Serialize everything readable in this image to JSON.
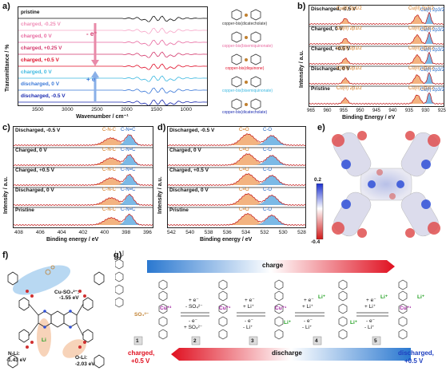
{
  "panel_a": {
    "label": "a)",
    "ylabel": "Transmittance / %",
    "xlabel": "Wavenumber / cm⁻¹",
    "xticks": [
      "3500",
      "3000",
      "2500",
      "2000",
      "1500",
      "1000"
    ],
    "rows": [
      {
        "label": "pristine",
        "color": "#111111"
      },
      {
        "label": "charged, -0.25 V",
        "color": "#f7a6c8"
      },
      {
        "label": "charged, 0 V",
        "color": "#e86aa0"
      },
      {
        "label": "charged, +0.25 V",
        "color": "#d43a6e"
      },
      {
        "label": "charged, +0.5 V",
        "color": "#e0102a"
      },
      {
        "label": "charged, 0 V",
        "color": "#3cb8e0"
      },
      {
        "label": "discharged, 0 V",
        "color": "#3a78d8"
      },
      {
        "label": "discharged, -0.5 V",
        "color": "#1a2ab0"
      }
    ],
    "arrow_down": "- e⁻",
    "arrow_up": "+ e⁻",
    "mol_labels": [
      "copper-bis(dicatecholate)",
      "copper-bis(bisemiquinonate)",
      "copper-bis(diquinone)",
      "copper-bis(bisemiquinonate)",
      "copper-bis(dicatecholate)"
    ]
  },
  "panel_b": {
    "label": "b)",
    "ylabel": "Intensity / a.u.",
    "xlabel": "Binding Energy / eV",
    "xticks": [
      "965",
      "960",
      "955",
      "950",
      "945",
      "940",
      "935",
      "930",
      "925"
    ],
    "rows": [
      {
        "label": "Discharged, -0.5 V",
        "p1": "Cu(II) 2p1/2",
        "p2": "Cu(II) 2p3/2",
        "p3": "Cu(I) 2p3/2"
      },
      {
        "label": "Charged, 0 V",
        "p1": "Cu(II) 2p1/2",
        "p2": "Cu(II) 2p3/2",
        "p3": "Cu(I) 2p3/2"
      },
      {
        "label": "Charged, +0.5 V",
        "p1": "Cu(II) 2p1/2",
        "p2": "Cu(II) 2p3/2",
        "p3": "Cu(I) 2p3/2"
      },
      {
        "label": "Discharged, 0 V",
        "p1": "Cu(II) 2p1/2",
        "p2": "Cu(II) 2p3/2",
        "p3": "Cu(I) 2p3/2"
      },
      {
        "label": "Pristine",
        "p1": "Cu(II) 2p1/2",
        "p2": "Cu(II) 2p3/2",
        "p3": "Cu(I) 2p3/2"
      }
    ]
  },
  "panel_c": {
    "label": "c)",
    "ylabel": "Intensity / a.u.",
    "xlabel": "Binding energy / eV",
    "xticks": [
      "408",
      "406",
      "404",
      "402",
      "400",
      "398",
      "396"
    ],
    "rows": [
      {
        "label": "Discharged, -0.5 V",
        "p1": "C-N-C",
        "p2": "C-N=C"
      },
      {
        "label": "Charged, 0 V",
        "p1": "C-N-C",
        "p2": "C-N=C"
      },
      {
        "label": "Charged, +0.5 V",
        "p1": "C-N-C",
        "p2": "C-N=C"
      },
      {
        "label": "Discharged, 0 V",
        "p1": "C-N-C",
        "p2": "C-N=C"
      },
      {
        "label": "Pristine",
        "p1": "C-N-C",
        "p2": "C-N=C"
      }
    ]
  },
  "panel_d": {
    "label": "d)",
    "ylabel": "Intensity / a.u.",
    "xlabel": "Binding energy / eV",
    "xticks": [
      "542",
      "540",
      "538",
      "536",
      "534",
      "532",
      "530",
      "528"
    ],
    "rows": [
      {
        "label": "Discharged, -0.5 V",
        "p1": "C=O",
        "p2": "C-O"
      },
      {
        "label": "Charged, 0 V",
        "p1": "C=O",
        "p2": "C-O"
      },
      {
        "label": "Charged, +0.5 V",
        "p1": "C=O",
        "p2": "C-O"
      },
      {
        "label": "Discharged, 0 V",
        "p1": "C=O",
        "p2": "C-O"
      },
      {
        "label": "Pristine",
        "p1": "C=O",
        "p2": "C-O"
      }
    ]
  },
  "panel_e": {
    "label": "e)",
    "scale_max": "0.2",
    "scale_min": "-0.4"
  },
  "panel_f": {
    "label": "f)",
    "cu_so4": "Cu-SO₄²⁻:",
    "cu_so4_e": "-1.55 eV",
    "nli": "N-Li:",
    "nli_e": "-1.43 eV",
    "oli": "O-Li:",
    "oli_e": "-2.03 eV",
    "cu": "Cu",
    "li": "Li"
  },
  "panel_g": {
    "label": "g)",
    "charge": "charge",
    "discharge": "discharge",
    "steps": [
      "1",
      "2",
      "3",
      "4",
      "5"
    ],
    "left_state": "charged,",
    "left_v": "+0.5 V",
    "right_state": "discharged,",
    "right_v": "+0.5 V",
    "eq1_top": "+ e⁻",
    "eq1_top2": "- SO₄²⁻",
    "eq1_bot": "- e⁻",
    "eq1_bot2": "+ SO₄²⁻",
    "eq2_top": "+ e⁻",
    "eq2_top2": "+ Li⁺",
    "eq2_bot": "- e⁻",
    "eq2_bot2": "- Li⁺",
    "eq3_top": "+ e⁻",
    "eq3_top2": "+ Li⁺",
    "eq3_bot": "- e⁻",
    "eq3_bot2": "- Li⁺",
    "eq4_top": "+ e⁻",
    "eq4_top2": "+ Li⁺",
    "eq4_bot": "- e⁻",
    "eq4_bot2": "- Li⁺",
    "so4": "SO₄²⁻",
    "cu2": "Cu⁺²",
    "cu1": "Cu⁺¹",
    "li": "Li⁺"
  }
}
